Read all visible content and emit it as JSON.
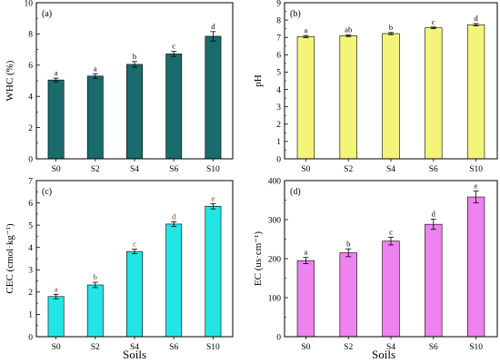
{
  "figure": {
    "shared_xlabel": "Soils"
  },
  "chart_data": [
    {
      "type": "bar",
      "panel_label": "(a)",
      "title": "",
      "xlabel": "",
      "ylabel": "WHC (%)",
      "categories": [
        "S0",
        "S2",
        "S4",
        "S6",
        "S10"
      ],
      "values": [
        5.05,
        5.3,
        6.05,
        6.72,
        7.85
      ],
      "errors": [
        0.12,
        0.15,
        0.18,
        0.16,
        0.3
      ],
      "letters": [
        "a",
        "a",
        "b",
        "c",
        "d"
      ],
      "ylim": [
        0,
        10
      ],
      "yticks": [
        0,
        2,
        4,
        6,
        8,
        10
      ],
      "bar_color": "#1a6b6b",
      "letter_color": "#000000"
    },
    {
      "type": "bar",
      "panel_label": "(b)",
      "title": "",
      "xlabel": "",
      "ylabel": "pH",
      "categories": [
        "S0",
        "S2",
        "S4",
        "S6",
        "S10"
      ],
      "values": [
        7.05,
        7.1,
        7.22,
        7.55,
        7.73
      ],
      "errors": [
        0.06,
        0.05,
        0.06,
        0.05,
        0.07
      ],
      "letters": [
        "a",
        "ab",
        "b",
        "c",
        "d"
      ],
      "ylim": [
        0,
        9
      ],
      "yticks": [
        0,
        1,
        2,
        3,
        4,
        5,
        6,
        7,
        8,
        9
      ],
      "bar_color": "#f4f47a",
      "letter_color": "#000000"
    },
    {
      "type": "bar",
      "panel_label": "(c)",
      "title": "",
      "xlabel": "Soils",
      "ylabel": "CEC (cmol·kg⁻¹)",
      "categories": [
        "S0",
        "S2",
        "S4",
        "S6",
        "S10"
      ],
      "values": [
        1.8,
        2.32,
        3.82,
        5.05,
        5.85
      ],
      "errors": [
        0.1,
        0.12,
        0.1,
        0.1,
        0.12
      ],
      "letters": [
        "a",
        "b",
        "c",
        "d",
        "e"
      ],
      "ylim": [
        0,
        7
      ],
      "yticks": [
        0,
        1,
        2,
        3,
        4,
        5,
        6,
        7
      ],
      "bar_color": "#22e6e6",
      "letter_color": "#7a3b10"
    },
    {
      "type": "bar",
      "panel_label": "(d)",
      "title": "",
      "xlabel": "Soils",
      "ylabel": "EC (us·cm⁻¹)",
      "categories": [
        "S0",
        "S2",
        "S4",
        "S6",
        "S10"
      ],
      "values": [
        195,
        215,
        245,
        288,
        358
      ],
      "errors": [
        8,
        10,
        10,
        13,
        15
      ],
      "letters": [
        "a",
        "b",
        "c",
        "d",
        "e"
      ],
      "ylim": [
        0,
        400
      ],
      "yticks": [
        0,
        100,
        200,
        300,
        400
      ],
      "bar_color": "#ee82ee",
      "letter_color": "#000000"
    }
  ]
}
